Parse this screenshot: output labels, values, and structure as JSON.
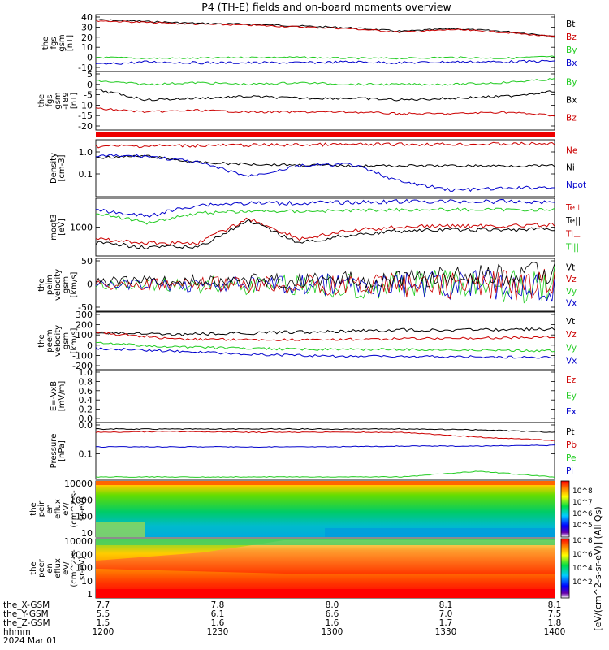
{
  "title": "P4 (TH-E) fields and on-board moments overview",
  "panels": [
    {
      "id": "fgs_gsm",
      "ylabel": [
        "the",
        "fgs",
        "gsm",
        "[nT]"
      ],
      "yticks": [
        40,
        30,
        20,
        10,
        0,
        -10
      ],
      "ylim": [
        -15,
        43
      ],
      "legend": [
        {
          "label": "Bt",
          "color": "#000000"
        },
        {
          "label": "Bz",
          "color": "#cc0000"
        },
        {
          "label": "By",
          "color": "#22cc22"
        },
        {
          "label": "Bx",
          "color": "#0000cc"
        }
      ]
    },
    {
      "id": "fgs_dsl",
      "ylabel": [
        "the",
        "fgs",
        "gsm",
        "-T89",
        "[nT]"
      ],
      "yticks": [
        5,
        0,
        -5,
        -10,
        -15,
        -20
      ],
      "ylim": [
        -25,
        6
      ],
      "legend": [
        {
          "label": "By",
          "color": "#22cc22"
        },
        {
          "label": "Bx",
          "color": "#000000"
        },
        {
          "label": "Bz",
          "color": "#cc0000"
        }
      ]
    },
    {
      "id": "density",
      "ylabel": [
        "Density",
        "[cm-3]"
      ],
      "yticks": [
        "1.0",
        "0.1"
      ],
      "ylim": [
        0.015,
        3.0
      ],
      "log": true,
      "legend": [
        {
          "label": "Ne",
          "color": "#cc0000"
        },
        {
          "label": "Ni",
          "color": "#000000"
        },
        {
          "label": "Npot",
          "color": "#0000cc"
        }
      ]
    },
    {
      "id": "temp",
      "ylabel": [
        "moqt3",
        "[eV]"
      ],
      "yticks": [
        "1000"
      ],
      "log": true,
      "legend": [
        {
          "label": "Te⊥",
          "color": "#cc0000"
        },
        {
          "label": "Te||",
          "color": "#000000"
        },
        {
          "label": "Ti⊥",
          "color": "#cc0000"
        },
        {
          "label": "Ti||",
          "color": "#22cc22"
        }
      ]
    },
    {
      "id": "peim_vel",
      "ylabel": [
        "the",
        "peim",
        "velocity",
        "gsm",
        "[km/s]"
      ],
      "yticks": [
        50,
        0,
        -50
      ],
      "ylim": [
        -55,
        85
      ],
      "legend": [
        {
          "label": "Vt",
          "color": "#000000"
        },
        {
          "label": "Vz",
          "color": "#cc0000"
        },
        {
          "label": "Vy",
          "color": "#22cc22"
        },
        {
          "label": "Vx",
          "color": "#0000cc"
        }
      ]
    },
    {
      "id": "peem_vel",
      "ylabel": [
        "the",
        "peem",
        "velocity",
        "gsm",
        "[km/s]"
      ],
      "yticks": [
        300,
        200,
        100,
        0,
        -100,
        -200
      ],
      "ylim": [
        -200,
        350
      ],
      "legend": [
        {
          "label": "Vt",
          "color": "#000000"
        },
        {
          "label": "Vz",
          "color": "#cc0000"
        },
        {
          "label": "Vy",
          "color": "#22cc22"
        },
        {
          "label": "Vx",
          "color": "#0000cc"
        }
      ]
    },
    {
      "id": "efield",
      "ylabel": [
        "E=-VxB",
        "[mV/m]"
      ],
      "yticks": [
        "1.0",
        "0.8",
        "0.6",
        "0.4",
        "0.2",
        "0.0"
      ],
      "ylim": [
        0,
        1
      ],
      "legend": [
        {
          "label": "Ez",
          "color": "#cc0000"
        },
        {
          "label": "Ey",
          "color": "#22cc22"
        },
        {
          "label": "Ex",
          "color": "#0000cc"
        }
      ]
    },
    {
      "id": "pressure",
      "ylabel": [
        "Pressure",
        "[nPa]"
      ],
      "yticks": [
        "0.0",
        "0.1"
      ],
      "log": true,
      "legend": [
        {
          "label": "Pt",
          "color": "#000000"
        },
        {
          "label": "Pb",
          "color": "#cc0000"
        },
        {
          "label": "Pe",
          "color": "#22cc22"
        },
        {
          "label": "Pi",
          "color": "#0000cc"
        }
      ]
    },
    {
      "id": "peir",
      "ylabel": [
        "the",
        "peir",
        "en",
        "eflux",
        "eV/",
        "(cm^2-s-",
        "sr-eV)"
      ],
      "yticks": [
        10000,
        1000,
        100,
        10
      ],
      "log": true
    },
    {
      "id": "peer",
      "ylabel": [
        "the",
        "peer",
        "en",
        "eflux",
        "eV/",
        "(cm^2-s-",
        "sr-eV)"
      ],
      "yticks": [
        10000,
        1000,
        100,
        10,
        1
      ],
      "log": true
    }
  ],
  "colorbar": {
    "label": "[eV/(cm^2-s-sr-eV)] (All Qs)",
    "upper_ticks": [
      "10^8",
      "10^7",
      "10^6",
      "10^5"
    ],
    "lower_ticks": [
      "10^8",
      "10^6",
      "10^4",
      "10^2"
    ]
  },
  "xaxis": {
    "rows": [
      {
        "label": "the_X-GSM",
        "values": [
          "7.7",
          "7.8",
          "8.0",
          "8.1",
          "8.1"
        ]
      },
      {
        "label": "the_Y-GSM",
        "values": [
          "5.5",
          "6.1",
          "6.6",
          "7.0",
          "7.5"
        ]
      },
      {
        "label": "the_Z-GSM",
        "values": [
          "1.5",
          "1.6",
          "1.6",
          "1.7",
          "1.8"
        ]
      },
      {
        "label": "hhmm",
        "values": [
          "1200",
          "1230",
          "1300",
          "1330",
          "1400"
        ]
      }
    ],
    "date": "2024 Mar 01"
  },
  "chart_data": {
    "type": "line",
    "title": "P4 (TH-E) fields and on-board moments overview",
    "x": [
      "1200",
      "1230",
      "1300",
      "1330",
      "1400"
    ],
    "series": [
      {
        "name": "Bt",
        "panel": "fgs_gsm",
        "values": [
          40,
          36,
          35,
          30,
          26
        ]
      },
      {
        "name": "Bz",
        "panel": "fgs_gsm",
        "values": [
          39,
          35,
          34,
          29,
          25
        ]
      },
      {
        "name": "By",
        "panel": "fgs_gsm",
        "values": [
          -3,
          -3,
          -2,
          -3,
          -2
        ]
      },
      {
        "name": "Bx",
        "panel": "fgs_gsm",
        "values": [
          -9,
          -8,
          -7,
          -7,
          -6
        ]
      },
      {
        "name": "By",
        "panel": "fgs_dsl",
        "values": [
          3,
          0,
          0,
          0,
          3
        ]
      },
      {
        "name": "Bx",
        "panel": "fgs_dsl",
        "values": [
          -5,
          -8,
          -8,
          -8,
          -5
        ]
      },
      {
        "name": "Bz",
        "panel": "fgs_dsl",
        "values": [
          -15,
          -16,
          -16,
          -17,
          -17
        ]
      },
      {
        "name": "Ne",
        "panel": "density",
        "values": [
          1.3,
          1.3,
          1.3,
          1.3,
          1.3
        ]
      },
      {
        "name": "Ni",
        "panel": "density",
        "values": [
          0.7,
          0.3,
          0.25,
          0.25,
          0.25
        ]
      },
      {
        "name": "Npot",
        "panel": "density",
        "values": [
          0.7,
          0.1,
          0.1,
          0.02,
          0.02
        ]
      },
      {
        "name": "Vt",
        "panel": "peim_vel",
        "values": [
          20,
          20,
          20,
          30,
          50
        ]
      },
      {
        "name": "Vz",
        "panel": "peim_vel",
        "values": [
          0,
          0,
          0,
          0,
          0
        ]
      },
      {
        "name": "Vy",
        "panel": "peim_vel",
        "values": [
          -10,
          0,
          0,
          -10,
          -20
        ]
      },
      {
        "name": "Vx",
        "panel": "peim_vel",
        "values": [
          0,
          0,
          0,
          0,
          0
        ]
      },
      {
        "name": "Vt",
        "panel": "peem_vel",
        "values": [
          110,
          130,
          150,
          160,
          170
        ]
      },
      {
        "name": "Vz",
        "panel": "peem_vel",
        "values": [
          90,
          70,
          60,
          70,
          80
        ]
      },
      {
        "name": "Vy",
        "panel": "peem_vel",
        "values": [
          -30,
          -40,
          -50,
          -60,
          -80
        ]
      },
      {
        "name": "Vx",
        "panel": "peem_vel",
        "values": [
          -60,
          -100,
          -120,
          -130,
          -140
        ]
      }
    ]
  }
}
